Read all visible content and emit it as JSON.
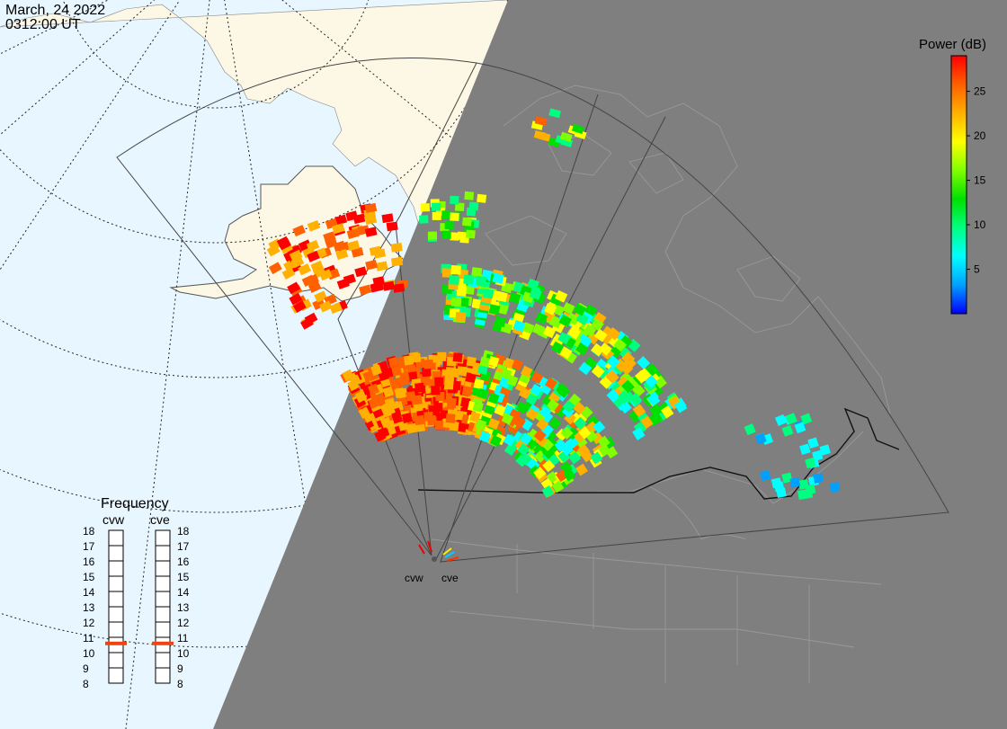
{
  "header": {
    "date": "March, 24 2022",
    "time": "0312:00 UT"
  },
  "colorbar": {
    "title": "Power (dB)",
    "min": 0,
    "max": 29,
    "ticks": [
      5,
      10,
      15,
      20,
      25
    ],
    "gradient": [
      "#0000ff",
      "#00a0ff",
      "#00ffff",
      "#00ff80",
      "#00e000",
      "#80ff00",
      "#ffff00",
      "#ffb000",
      "#ff6000",
      "#ff0000"
    ]
  },
  "frequency_panel": {
    "title": "Frequency",
    "radars": [
      {
        "code": "cvw",
        "freq_mhz": 10.6
      },
      {
        "code": "cve",
        "freq_mhz": 10.6
      }
    ],
    "scale": [
      18,
      17,
      16,
      15,
      14,
      13,
      12,
      11,
      10,
      9,
      8
    ],
    "marker_color": "#ee4411"
  },
  "radar_sites": {
    "labels": [
      "cvw",
      "cve"
    ]
  },
  "colors": {
    "ocean": "#e8f6ff",
    "land_day": "#fdf8e6",
    "night": "#7f7f7f",
    "fov_line": "#444444"
  }
}
